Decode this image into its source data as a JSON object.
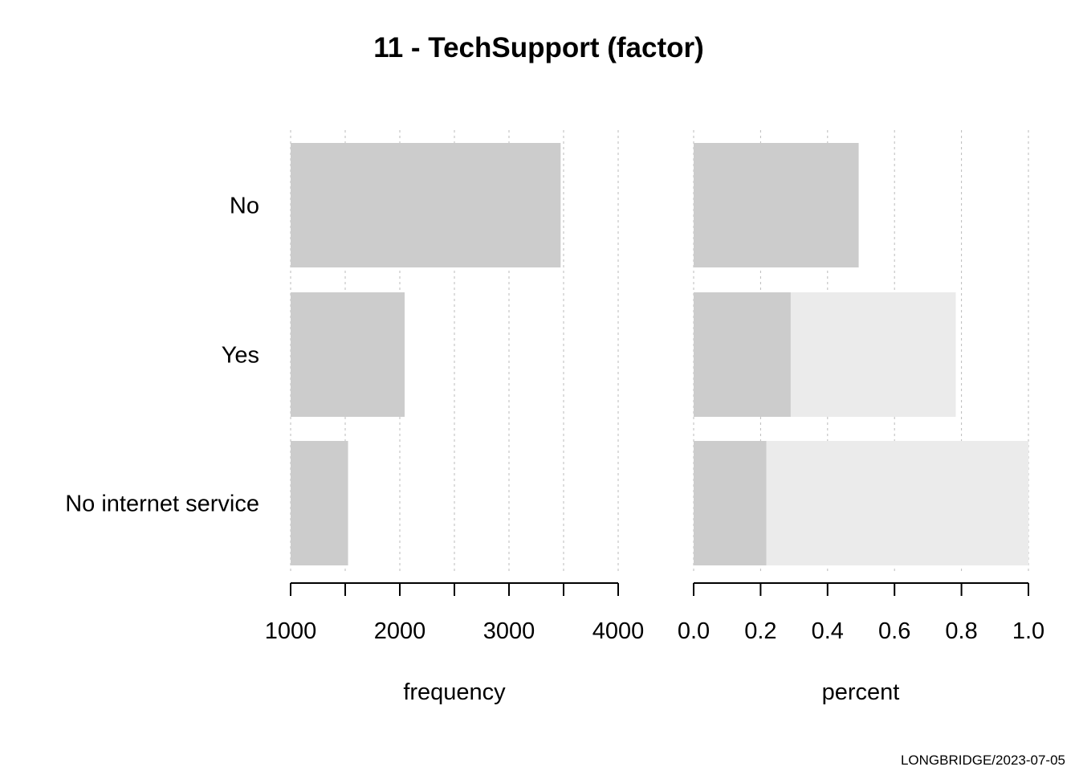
{
  "figure": {
    "title": "11 - TechSupport (factor)",
    "footer": "LONGBRIDGE/2023-07-05"
  },
  "chart_data": [
    {
      "type": "bar",
      "orientation": "horizontal",
      "categories": [
        "No",
        "Yes",
        "No internet service"
      ],
      "values": [
        3473,
        2044,
        1526
      ],
      "xlabel": "frequency",
      "ylabel": "",
      "xlim": [
        1000,
        4000
      ],
      "ticks": [
        1000,
        1500,
        2000,
        2500,
        3000,
        3500,
        4000
      ],
      "tick_labels": [
        "1000",
        "2000",
        "3000",
        "4000"
      ],
      "tick_label_values": [
        1000,
        2000,
        3000,
        4000
      ],
      "grid": true,
      "colors": {
        "bar": "#cccccc"
      }
    },
    {
      "type": "bar",
      "orientation": "horizontal",
      "stacked": true,
      "categories": [
        "No",
        "Yes",
        "No internet service"
      ],
      "series": [
        {
          "values": [
            0.493,
            0.29,
            0.217
          ]
        },
        {
          "values": [
            0.0,
            0.493,
            0.783
          ]
        }
      ],
      "xlabel": "percent",
      "ylabel": "",
      "xlim": [
        0,
        1
      ],
      "ticks": [
        0,
        0.2,
        0.4,
        0.6,
        0.8,
        1.0
      ],
      "tick_labels": [
        "0.0",
        "0.2",
        "0.4",
        "0.6",
        "0.8",
        "1.0"
      ],
      "tick_label_values": [
        0,
        0.2,
        0.4,
        0.6,
        0.8,
        1.0
      ],
      "grid": true,
      "colors": {
        "bar": "#cccccc",
        "cumulative": "#ebebeb"
      }
    }
  ]
}
